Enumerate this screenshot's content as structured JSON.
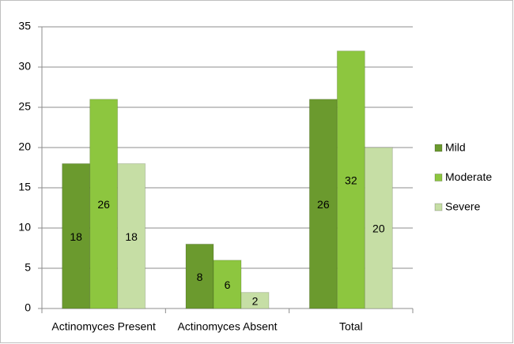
{
  "chart_data": {
    "type": "bar",
    "categories": [
      "Actinomyces Present",
      "Actinomyces Absent",
      "Total"
    ],
    "series": [
      {
        "name": "Mild",
        "color": "#6b9a2e",
        "values": [
          18,
          8,
          26
        ]
      },
      {
        "name": "Moderate",
        "color": "#8dc63f",
        "values": [
          26,
          6,
          32
        ]
      },
      {
        "name": "Severe",
        "color": "#c6dea5",
        "values": [
          18,
          2,
          20
        ]
      }
    ],
    "ylim": [
      0,
      35
    ],
    "yticks": [
      0,
      5,
      10,
      15,
      20,
      25,
      30,
      35
    ],
    "grid": true,
    "legend": "right"
  }
}
